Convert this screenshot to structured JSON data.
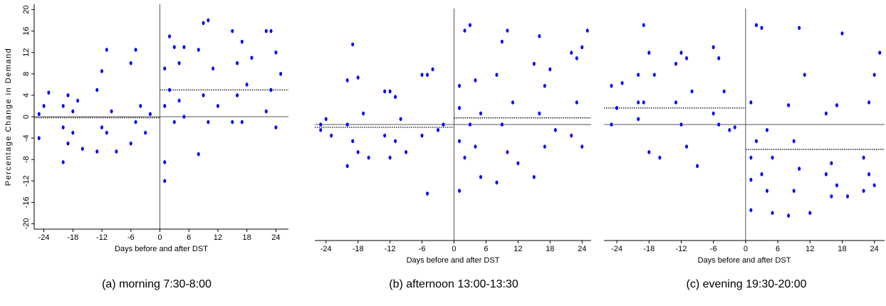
{
  "chart_data": [
    {
      "type": "scatter",
      "caption": "(a) morning 7:30-8:00",
      "xlabel": "Days before and after DST",
      "ylabel": "Percentage Change in Demand",
      "color": "#0000ff",
      "x": [
        -25,
        -25,
        -24,
        -23,
        -20,
        -20,
        -20,
        -19,
        -19,
        -18,
        -18,
        -17,
        -16,
        -13,
        -13,
        -12,
        -12,
        -11,
        -11,
        -10,
        -9,
        -6,
        -6,
        -5,
        -5,
        -4,
        -3,
        -2,
        1,
        1,
        1,
        1,
        2,
        2,
        3,
        3,
        4,
        4,
        5,
        5,
        8,
        8,
        9,
        9,
        10,
        10,
        11,
        12,
        15,
        15,
        16,
        16,
        17,
        17,
        18,
        19,
        22,
        22,
        23,
        23,
        24,
        24,
        25
      ],
      "y": [
        0.5,
        -4,
        2,
        4.5,
        -8.5,
        2,
        -2,
        4,
        -5,
        1,
        -3,
        3,
        -6,
        5,
        -6.5,
        8.5,
        -2,
        12.5,
        -3,
        1,
        -6.5,
        10,
        -5,
        12.5,
        -1,
        2,
        -3,
        0.5,
        -12,
        -8.5,
        9,
        2,
        15,
        5,
        13,
        -1,
        10,
        3,
        13,
        0,
        -7,
        12.5,
        17.5,
        4,
        18,
        -1,
        9,
        2,
        16,
        -1,
        10,
        4,
        14,
        -1,
        6,
        11,
        16,
        1,
        16,
        5,
        12,
        -2,
        8
      ],
      "mean_lines": [
        {
          "from": -26,
          "to": 0,
          "value": -0.2
        },
        {
          "from": 0,
          "to": 26.6,
          "value": 5
        }
      ],
      "xlim": [
        -26,
        26.6
      ],
      "ylim": [
        -21,
        21
      ],
      "xticks": [
        -24,
        -18,
        -12,
        -6,
        0,
        6,
        12,
        18,
        24
      ],
      "yticks": [
        -20,
        -16,
        -12,
        -8,
        -4,
        0,
        4,
        8,
        12,
        16,
        20
      ]
    },
    {
      "type": "scatter",
      "caption": "(b) afternoon 13:00-13:30",
      "xlabel": "Days before and after DST",
      "color": "#0000ff",
      "x": [
        -25,
        -25,
        -24,
        -23,
        -20,
        -20,
        -20,
        -19,
        -19,
        -18,
        -18,
        -17,
        -16,
        -13,
        -13,
        -12,
        -12,
        -11,
        -11,
        -10,
        -9,
        -6,
        -6,
        -5,
        -5,
        -4,
        -3,
        -2,
        1,
        1,
        1,
        1,
        2,
        2,
        3,
        3,
        4,
        4,
        5,
        5,
        8,
        8,
        9,
        9,
        10,
        10,
        11,
        12,
        15,
        15,
        16,
        16,
        17,
        17,
        18,
        19,
        22,
        22,
        23,
        23,
        24,
        24,
        25
      ],
      "y": [
        0,
        -1,
        1,
        -2,
        -7.5,
        8,
        0,
        14.5,
        -3,
        8.5,
        -5,
        2,
        -6,
        6,
        -2,
        6,
        -6,
        5,
        -3,
        1,
        -5,
        9,
        -2,
        9,
        -12.5,
        10,
        -1,
        0,
        -12,
        7,
        3,
        -3,
        17,
        -6,
        18,
        0,
        8,
        -4,
        -9.5,
        2,
        -10.5,
        9,
        15,
        0,
        17,
        -5,
        4,
        -7,
        11,
        -9.5,
        16,
        2,
        7,
        -4,
        10,
        -1,
        13,
        -2,
        12,
        4,
        14,
        -4,
        17
      ],
      "mean_lines": [
        {
          "from": -26.1,
          "to": 0,
          "value": -0.5
        },
        {
          "from": 0,
          "to": 25.7,
          "value": 1.2
        }
      ],
      "xlim": [
        -26.1,
        25.7
      ],
      "ylim": [
        -21,
        21
      ],
      "xticks": [
        -24,
        -18,
        -12,
        -6,
        0,
        6,
        12,
        18,
        24
      ]
    },
    {
      "type": "scatter",
      "caption": "(c) evening 19:30-20:00",
      "xlabel": "Days before and after DST",
      "color": "#0000ff",
      "x": [
        -25,
        -25,
        -24,
        -23,
        -20,
        -20,
        -20,
        -19,
        -19,
        -18,
        -18,
        -17,
        -16,
        -13,
        -13,
        -12,
        -12,
        -11,
        -11,
        -10,
        -9,
        -6,
        -6,
        -5,
        -5,
        -4,
        -3,
        -2,
        1,
        1,
        1,
        1,
        2,
        2,
        3,
        3,
        4,
        4,
        5,
        5,
        8,
        8,
        9,
        9,
        10,
        10,
        11,
        12,
        15,
        15,
        16,
        16,
        17,
        17,
        18,
        19,
        22,
        22,
        23,
        23,
        24,
        24,
        25
      ],
      "y": [
        7,
        0,
        3,
        7.5,
        1,
        9,
        4,
        18,
        4,
        13,
        -5,
        9,
        -6,
        11,
        4,
        13,
        0,
        12,
        -4,
        6,
        -7.5,
        14,
        2,
        12,
        0,
        6,
        -1,
        -0.5,
        -15.5,
        4,
        -6,
        -10,
        18,
        -3,
        17.5,
        -9,
        -1,
        -12,
        -16,
        -6,
        -16.5,
        3.5,
        -3,
        -12,
        17.5,
        -8,
        9,
        -16,
        2,
        -9,
        -7,
        -13,
        3.5,
        -11,
        16.5,
        -13,
        -6,
        -12,
        4,
        -9,
        9,
        -11,
        13
      ],
      "mean_lines": [
        {
          "from": -26.4,
          "to": 0,
          "value": 3
        },
        {
          "from": 0,
          "to": 25.9,
          "value": -4.5
        }
      ],
      "xlim": [
        -26.4,
        25.9
      ],
      "ylim": [
        -21,
        21
      ],
      "xticks": [
        -24,
        -18,
        -12,
        -6,
        0,
        6,
        12,
        18,
        24
      ]
    }
  ]
}
